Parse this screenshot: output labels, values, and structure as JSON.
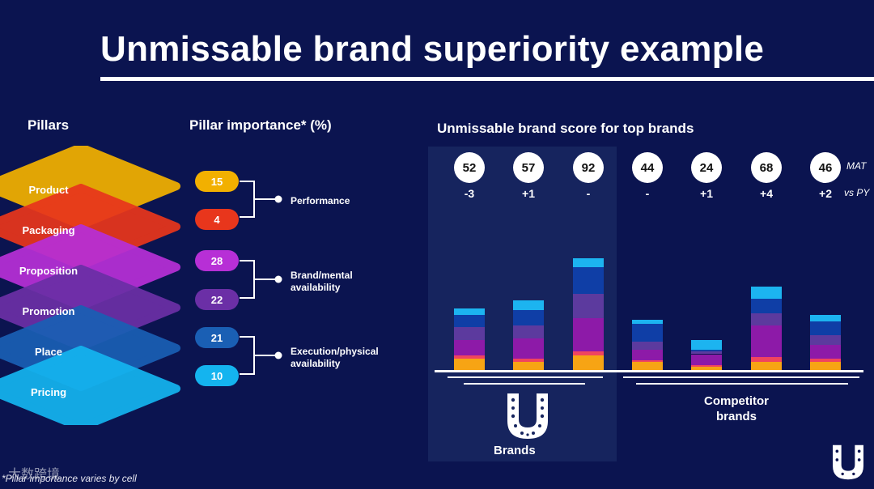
{
  "title": "Unmissable brand superiority example",
  "pillars_heading": "Pillars",
  "importance_heading": "Pillar importance* (%)",
  "score_heading": "Unmissable brand score for top brands",
  "pillars": [
    {
      "label": "Product",
      "importance": 15,
      "color": "#f2b000"
    },
    {
      "label": "Packaging",
      "importance": 4,
      "color": "#e8361c"
    },
    {
      "label": "Proposition",
      "importance": 28,
      "color": "#b72fd6"
    },
    {
      "label": "Promotion",
      "importance": 22,
      "color": "#6b2fa6"
    },
    {
      "label": "Place",
      "importance": 21,
      "color": "#1a5fb4"
    },
    {
      "label": "Pricing",
      "importance": 10,
      "color": "#14b4ef"
    }
  ],
  "groups": [
    {
      "label": "Performance"
    },
    {
      "label": "Brand/mental availability"
    },
    {
      "label": "Execution/physical availability"
    }
  ],
  "row_tags": {
    "mat": "MAT",
    "vspy": "vs PY"
  },
  "brands_label": "Brands",
  "competitor_label": "Competitor brands",
  "footnote": "*Pillar importance varies by cell",
  "watermark": "大数跨境",
  "chart_data": {
    "type": "bar",
    "stacked": true,
    "title": "Unmissable brand score for top brands",
    "segment_colors": [
      "#f7a414",
      "#f0445f",
      "#8d1aa8",
      "#5c3a9e",
      "#0f3ea6",
      "#1cb4f0"
    ],
    "bars": [
      {
        "group": "Brands",
        "mat": "52",
        "vspy": "-3",
        "segments": [
          7,
          2,
          10,
          8,
          8,
          4
        ]
      },
      {
        "group": "Brands",
        "mat": "57",
        "vspy": "+1",
        "segments": [
          5,
          2,
          13,
          8,
          10,
          6
        ]
      },
      {
        "group": "Brands",
        "mat": "92",
        "vspy": "-",
        "segments": [
          9,
          3,
          21,
          15,
          17,
          6
        ]
      },
      {
        "group": "Competitor brands",
        "mat": "44",
        "vspy": "-",
        "segments": [
          5,
          1,
          7,
          5,
          11,
          3
        ]
      },
      {
        "group": "Competitor brands",
        "mat": "24",
        "vspy": "+1",
        "segments": [
          2,
          1,
          7,
          2,
          1,
          6
        ]
      },
      {
        "group": "Competitor brands",
        "mat": "68",
        "vspy": "+4",
        "segments": [
          5,
          3,
          20,
          8,
          9,
          8
        ]
      },
      {
        "group": "Competitor brands",
        "mat": "46",
        "vspy": "+2",
        "segments": [
          5,
          2,
          9,
          6,
          9,
          4
        ]
      }
    ]
  }
}
